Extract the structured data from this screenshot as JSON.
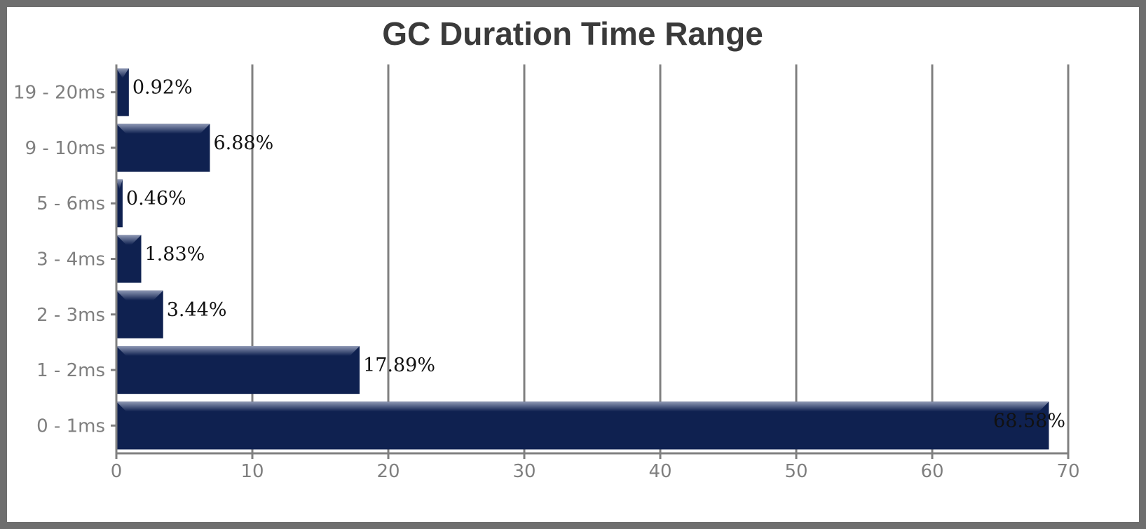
{
  "chart_data": {
    "type": "bar",
    "orientation": "horizontal",
    "title": "GC Duration Time Range",
    "categories": [
      "19 - 20ms",
      "9 - 10ms",
      "5 - 6ms",
      "3 - 4ms",
      "2 - 3ms",
      "1 - 2ms",
      "0 - 1ms"
    ],
    "values": [
      0.92,
      6.88,
      0.46,
      1.83,
      3.44,
      17.89,
      68.58
    ],
    "value_labels": [
      "0.92%",
      "6.88%",
      "0.46%",
      "1.83%",
      "3.44%",
      "17.89%",
      "68.58%"
    ],
    "xlim": [
      0,
      70
    ],
    "x_ticks": [
      "0",
      "10",
      "20",
      "30",
      "40",
      "50",
      "60",
      "70"
    ],
    "xlabel": "",
    "ylabel": "",
    "grid": "vertical",
    "legend": "none",
    "colors": {
      "bar": "#0f2150",
      "bar_highlight": "#7f8aa8",
      "grid": "#808080",
      "axis": "#808080",
      "frame": "#6e6e6e"
    }
  }
}
